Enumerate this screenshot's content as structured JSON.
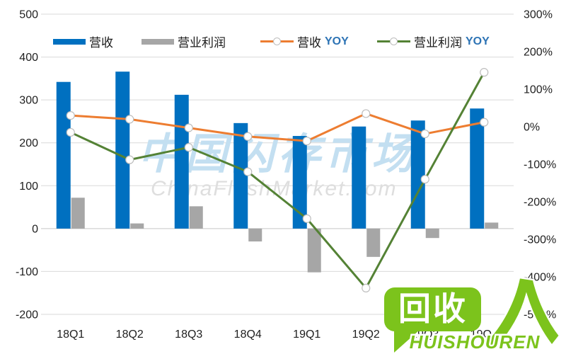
{
  "watermark": {
    "line1": "中国闪存市场",
    "line2": "ChinaFlashMarket.com"
  },
  "legend": {
    "items": [
      {
        "label": "营收",
        "suffix": "",
        "type": "bar",
        "color": "#0070C0"
      },
      {
        "label": "营业利润",
        "suffix": "",
        "type": "bar",
        "color": "#A6A6A6"
      },
      {
        "label": "营收",
        "suffix": "YOY",
        "type": "line",
        "color": "#ED7D31"
      },
      {
        "label": "营业利润",
        "suffix": "YOY",
        "type": "line",
        "color": "#548235"
      }
    ]
  },
  "logo": {
    "bubble_text": "回收",
    "person_glyph": "人",
    "subtext": "HUISHOUREN",
    "color": "#7CC31C"
  },
  "chart_data": {
    "type": "combo-bar-line",
    "title": "",
    "categories": [
      "18Q1",
      "18Q2",
      "18Q3",
      "18Q4",
      "19Q1",
      "19Q2",
      "19Q3",
      "19Q4"
    ],
    "series": [
      {
        "name": "营收",
        "type": "bar",
        "axis": "left",
        "color": "#0070C0",
        "values": [
          342,
          366,
          312,
          246,
          216,
          238,
          252,
          280
        ]
      },
      {
        "name": "营业利润",
        "type": "bar",
        "axis": "left",
        "color": "#A6A6A6",
        "values": [
          72,
          12,
          52,
          -30,
          -102,
          -66,
          -22,
          14
        ]
      },
      {
        "name": "营收YOY",
        "type": "line",
        "axis": "right",
        "color": "#ED7D31",
        "unit": "%",
        "values": [
          30,
          20,
          -3,
          -26,
          -38,
          35,
          -19,
          12
        ]
      },
      {
        "name": "营业利润YOY",
        "type": "line",
        "axis": "right",
        "color": "#548235",
        "unit": "%",
        "values": [
          -15,
          -88,
          -55,
          -120,
          -245,
          -430,
          -140,
          145
        ]
      }
    ],
    "left_axis": {
      "min": -200,
      "max": 500,
      "step": 100,
      "ticks": [
        "500",
        "400",
        "300",
        "200",
        "100",
        "0",
        "-100",
        "-200"
      ]
    },
    "right_axis": {
      "min": -500,
      "max": 300,
      "step": 100,
      "ticks": [
        "300%",
        "200%",
        "100%",
        "0%",
        "-100%",
        "-200%",
        "-300%",
        "-400%",
        "-500%"
      ]
    },
    "grid": true,
    "legend_position": "top"
  },
  "colors": {
    "gridline": "#D9D9D9",
    "zero_line": "#C6C6C6",
    "axis_text": "#1F1F1F",
    "yoy_text": "#2E74B5",
    "marker_fill": "#FFFFFF",
    "marker_border": "#BDBDBD",
    "watermark_cn": "#C3DFF1",
    "watermark_en": "#DEDEDE"
  }
}
